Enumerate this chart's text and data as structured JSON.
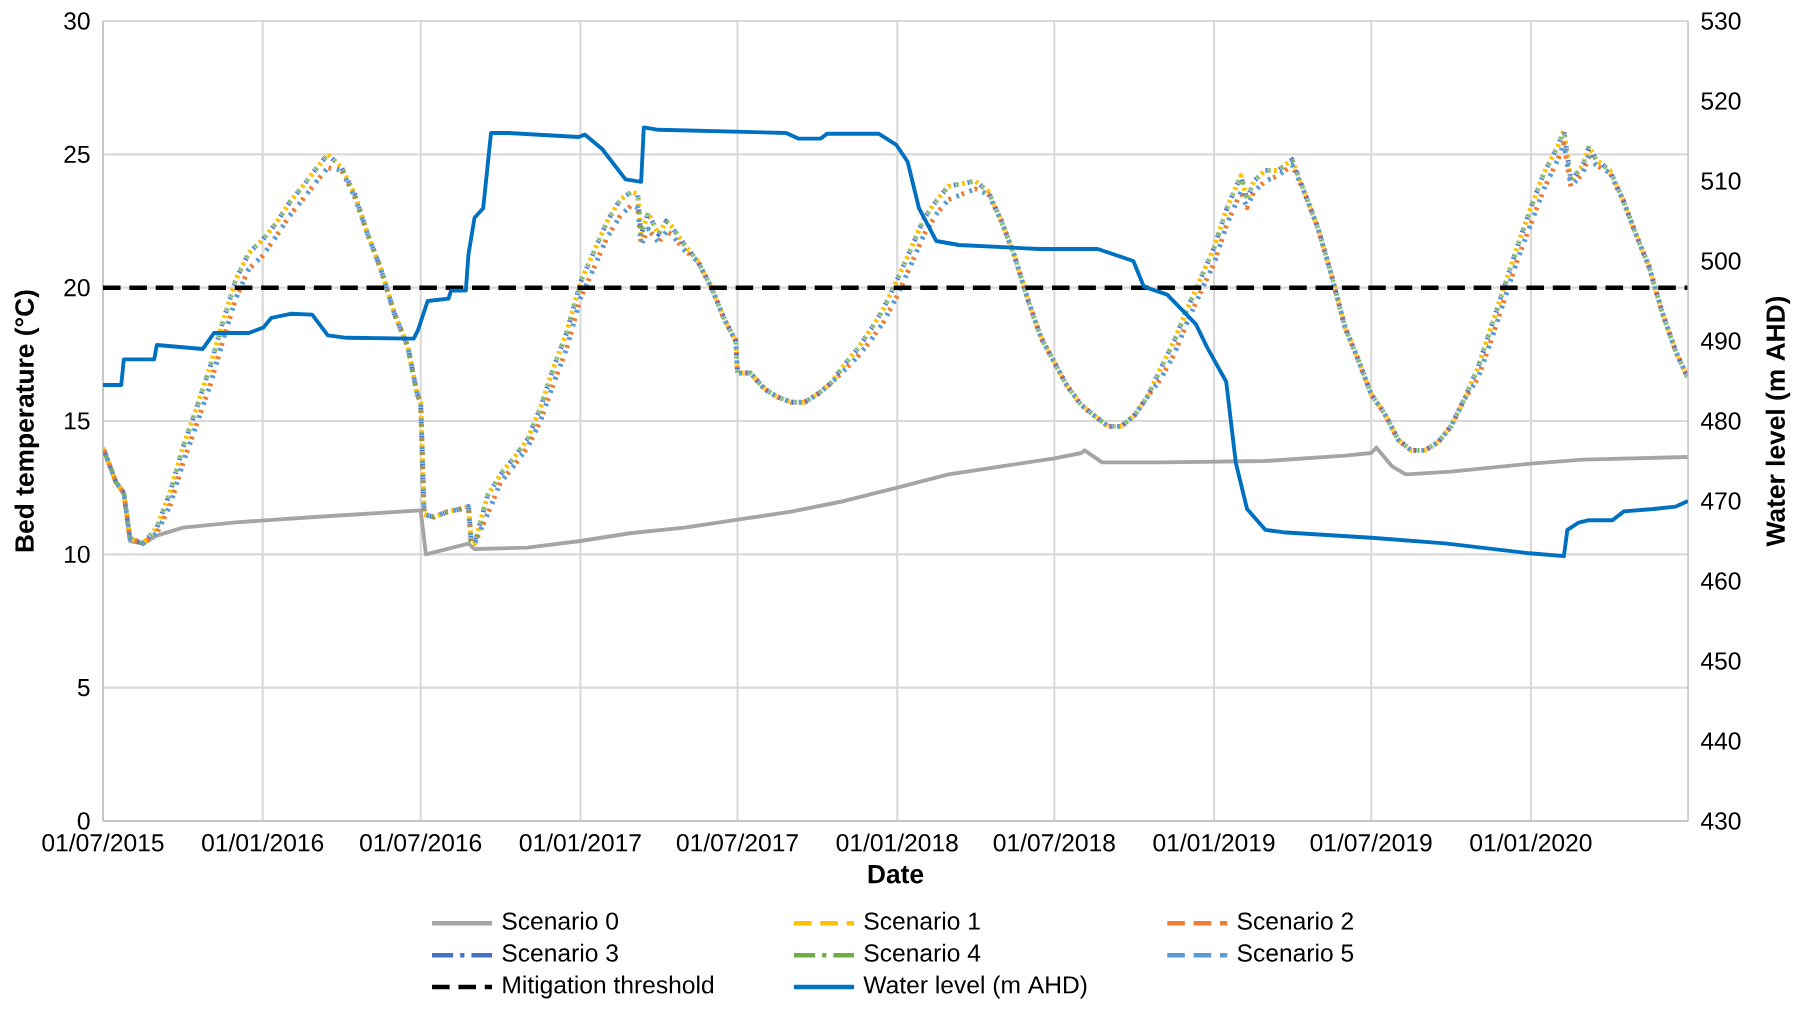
{
  "chart_data": {
    "type": "line",
    "xlabel": "Date",
    "ylabel": "Bed temperature (°C)",
    "y2label": "Water level (m AHD)",
    "xlim": [
      "2015-07-01",
      "2020-06-30"
    ],
    "xticks": [
      {
        "value": "2015-07-01",
        "label": "01/07/2015"
      },
      {
        "value": "2016-01-01",
        "label": "01/01/2016"
      },
      {
        "value": "2016-07-01",
        "label": "01/07/2016"
      },
      {
        "value": "2017-01-01",
        "label": "01/01/2017"
      },
      {
        "value": "2017-07-01",
        "label": "01/07/2017"
      },
      {
        "value": "2018-01-01",
        "label": "01/01/2018"
      },
      {
        "value": "2018-07-01",
        "label": "01/07/2018"
      },
      {
        "value": "2019-01-01",
        "label": "01/01/2019"
      },
      {
        "value": "2019-07-01",
        "label": "01/07/2019"
      },
      {
        "value": "2020-01-01",
        "label": "01/01/2020"
      }
    ],
    "ylim": [
      0,
      30
    ],
    "yticks": [
      0,
      5,
      10,
      15,
      20,
      25,
      30
    ],
    "y2lim": [
      430,
      530
    ],
    "y2ticks": [
      430,
      440,
      450,
      460,
      470,
      480,
      490,
      500,
      510,
      520,
      530
    ],
    "grid": true,
    "legend": "bottom",
    "x": [
      "2015-07-01",
      "2015-07-16",
      "2015-07-25",
      "2015-08-01",
      "2015-08-16",
      "2015-09-01",
      "2015-09-16",
      "2015-10-01",
      "2015-10-16",
      "2015-11-01",
      "2015-11-16",
      "2015-12-01",
      "2015-12-16",
      "2016-01-01",
      "2016-01-16",
      "2016-02-01",
      "2016-02-16",
      "2016-03-01",
      "2016-03-16",
      "2016-04-01",
      "2016-04-16",
      "2016-05-01",
      "2016-05-16",
      "2016-06-01",
      "2016-06-16",
      "2016-06-27",
      "2016-07-01",
      "2016-07-05",
      "2016-07-16",
      "2016-08-01",
      "2016-08-16",
      "2016-08-25",
      "2016-08-28",
      "2016-09-01",
      "2016-09-16",
      "2016-10-01",
      "2016-10-16",
      "2016-11-01",
      "2016-11-16",
      "2016-12-01",
      "2016-12-16",
      "2017-01-01",
      "2017-01-16",
      "2017-02-01",
      "2017-02-16",
      "2017-03-01",
      "2017-03-08",
      "2017-03-12",
      "2017-03-20",
      "2017-04-01",
      "2017-04-10",
      "2017-04-16",
      "2017-05-01",
      "2017-05-16",
      "2017-06-01",
      "2017-06-16",
      "2017-06-29",
      "2017-07-01",
      "2017-07-16",
      "2017-08-01",
      "2017-08-16",
      "2017-09-01",
      "2017-09-16",
      "2017-10-01",
      "2017-10-16",
      "2017-11-01",
      "2017-11-16",
      "2017-12-01",
      "2017-12-16",
      "2018-01-01",
      "2018-01-16",
      "2018-02-01",
      "2018-02-16",
      "2018-03-01",
      "2018-03-16",
      "2018-04-01",
      "2018-04-16",
      "2018-05-01",
      "2018-05-16",
      "2018-06-01",
      "2018-06-16",
      "2018-07-01",
      "2018-07-16",
      "2018-08-01",
      "2018-08-16",
      "2018-09-01",
      "2018-09-16",
      "2018-10-01",
      "2018-10-16",
      "2018-11-01",
      "2018-11-16",
      "2018-12-01",
      "2018-12-16",
      "2019-01-01",
      "2019-01-16",
      "2019-02-01",
      "2019-02-08",
      "2019-02-16",
      "2019-03-01",
      "2019-03-16",
      "2019-04-01",
      "2019-04-16",
      "2019-05-01",
      "2019-05-16",
      "2019-06-01",
      "2019-06-16",
      "2019-07-01",
      "2019-07-16",
      "2019-08-01",
      "2019-08-16",
      "2019-09-01",
      "2019-09-16",
      "2019-10-01",
      "2019-10-16",
      "2019-11-01",
      "2019-11-16",
      "2019-12-01",
      "2019-12-16",
      "2020-01-01",
      "2020-01-16",
      "2020-02-01",
      "2020-02-08",
      "2020-02-16",
      "2020-03-01",
      "2020-03-08",
      "2020-03-16",
      "2020-04-01",
      "2020-04-16",
      "2020-05-01",
      "2020-05-16",
      "2020-06-01",
      "2020-06-16",
      "2020-06-30"
    ],
    "series": [
      {
        "name": "Scenario 0",
        "color": "#a5a5a5",
        "line_style": "solid",
        "x": [
          "2015-07-01",
          "2015-07-16",
          "2015-07-25",
          "2015-08-01",
          "2015-08-16",
          "2015-09-01",
          "2015-10-01",
          "2015-12-01",
          "2016-03-01",
          "2016-07-01",
          "2016-07-07",
          "2016-08-25",
          "2016-09-01",
          "2016-11-01",
          "2017-01-01",
          "2017-03-01",
          "2017-05-01",
          "2017-07-01",
          "2017-09-01",
          "2017-11-01",
          "2018-01-01",
          "2018-03-01",
          "2018-05-01",
          "2018-07-01",
          "2018-08-01",
          "2018-08-05",
          "2018-08-25",
          "2018-11-01",
          "2019-03-01",
          "2019-06-01",
          "2019-07-01",
          "2019-07-07",
          "2019-07-25",
          "2019-08-10",
          "2019-10-01",
          "2020-01-01",
          "2020-03-01",
          "2020-06-30"
        ],
        "values": [
          14.0,
          12.7,
          12.3,
          10.5,
          10.4,
          10.7,
          11.0,
          11.2,
          11.4,
          11.65,
          10.0,
          10.4,
          10.2,
          10.25,
          10.5,
          10.8,
          11.0,
          11.3,
          11.6,
          12.0,
          12.5,
          13.0,
          13.3,
          13.6,
          13.8,
          13.9,
          13.45,
          13.45,
          13.5,
          13.7,
          13.8,
          14.0,
          13.3,
          13.0,
          13.1,
          13.4,
          13.55,
          13.65
        ]
      },
      {
        "name": "Scenario 1",
        "color": "#ffc000",
        "line_style": "dashed",
        "values": [
          14.0,
          12.7,
          12.3,
          10.6,
          10.4,
          11.0,
          12.3,
          14.0,
          15.4,
          17.0,
          18.7,
          20.3,
          21.3,
          21.8,
          22.4,
          23.2,
          23.8,
          24.4,
          25.0,
          24.5,
          23.5,
          22.0,
          20.7,
          19.0,
          17.8,
          16.0,
          15.7,
          11.5,
          11.4,
          11.6,
          11.7,
          11.8,
          10.5,
          10.4,
          12.2,
          13.0,
          13.6,
          14.3,
          15.5,
          17.0,
          18.3,
          20.2,
          21.3,
          22.5,
          23.3,
          23.6,
          23.5,
          22.0,
          22.8,
          22.0,
          22.5,
          22.3,
          21.6,
          21.0,
          20.0,
          18.8,
          18.0,
          16.8,
          16.8,
          16.2,
          15.9,
          15.7,
          15.7,
          16.0,
          16.4,
          17.1,
          17.7,
          18.4,
          19.2,
          20.3,
          21.4,
          22.6,
          23.3,
          23.8,
          23.9,
          24.0,
          23.6,
          22.5,
          21.2,
          19.5,
          18.1,
          17.2,
          16.3,
          15.6,
          15.2,
          14.8,
          14.8,
          15.2,
          15.9,
          17.0,
          18.0,
          19.2,
          20.3,
          21.5,
          23.0,
          24.2,
          23.3,
          24.0,
          24.4,
          24.4,
          24.8,
          23.5,
          22.2,
          20.5,
          18.5,
          17.3,
          16.0,
          15.3,
          14.3,
          13.9,
          13.9,
          14.2,
          14.8,
          15.8,
          17.0,
          18.5,
          20.0,
          21.5,
          23.0,
          24.3,
          25.3,
          25.9,
          24.0,
          24.6,
          25.3,
          24.8,
          24.4,
          23.3,
          22.0,
          20.8,
          19.0,
          17.6,
          16.6
        ]
      },
      {
        "name": "Scenario 2",
        "color": "#ed7d31",
        "line_style": "dashed",
        "values": [
          14.0,
          12.7,
          12.3,
          10.6,
          10.4,
          10.8,
          11.8,
          13.4,
          14.8,
          16.3,
          18.0,
          19.6,
          20.7,
          21.2,
          21.9,
          22.7,
          23.3,
          23.9,
          24.5,
          24.4,
          23.4,
          22.0,
          20.7,
          19.0,
          17.8,
          16.0,
          15.7,
          11.5,
          11.4,
          11.6,
          11.7,
          11.8,
          10.5,
          10.4,
          11.5,
          12.7,
          13.3,
          14.0,
          15.0,
          16.4,
          17.7,
          19.6,
          20.7,
          21.9,
          22.7,
          23.1,
          23.0,
          21.6,
          22.2,
          21.7,
          22.1,
          22.0,
          21.4,
          21.0,
          20.0,
          18.8,
          18.0,
          16.8,
          16.8,
          16.2,
          15.9,
          15.7,
          15.7,
          16.0,
          16.4,
          16.9,
          17.4,
          18.0,
          18.7,
          19.7,
          20.8,
          22.0,
          22.8,
          23.3,
          23.5,
          23.7,
          23.5,
          22.5,
          21.2,
          19.5,
          18.1,
          17.2,
          16.3,
          15.6,
          15.2,
          14.8,
          14.8,
          15.2,
          15.9,
          16.6,
          17.5,
          18.7,
          19.8,
          20.9,
          22.4,
          23.6,
          23.0,
          23.6,
          24.0,
          24.2,
          24.6,
          23.5,
          22.2,
          20.5,
          18.5,
          17.3,
          16.0,
          15.3,
          14.3,
          13.9,
          13.9,
          14.2,
          14.8,
          15.8,
          16.6,
          18.0,
          19.5,
          21.0,
          22.4,
          23.7,
          24.8,
          25.4,
          23.8,
          24.3,
          25.0,
          24.6,
          24.3,
          23.3,
          22.0,
          20.8,
          19.0,
          17.6,
          16.6
        ]
      },
      {
        "name": "Scenario 3",
        "color": "#4472c4",
        "line_style": "dashdot",
        "values": [
          14.0,
          12.7,
          12.3,
          10.6,
          10.4,
          11.0,
          12.3,
          14.0,
          15.4,
          17.0,
          18.7,
          20.3,
          21.3,
          21.8,
          22.4,
          23.2,
          23.8,
          24.4,
          25.0,
          24.5,
          23.5,
          22.0,
          20.7,
          19.0,
          17.8,
          16.0,
          15.7,
          11.5,
          11.4,
          11.6,
          11.7,
          11.8,
          10.5,
          10.4,
          12.2,
          13.0,
          13.6,
          14.3,
          15.5,
          17.0,
          18.3,
          20.2,
          21.3,
          22.5,
          23.3,
          23.6,
          23.5,
          22.0,
          22.8,
          22.0,
          22.5,
          22.3,
          21.6,
          21.0,
          20.0,
          18.8,
          18.0,
          16.8,
          16.8,
          16.2,
          15.9,
          15.7,
          15.7,
          16.0,
          16.4,
          17.1,
          17.7,
          18.4,
          19.2,
          20.3,
          21.4,
          22.6,
          23.3,
          23.8,
          23.9,
          24.0,
          23.6,
          22.5,
          21.2,
          19.5,
          18.1,
          17.2,
          16.3,
          15.6,
          15.2,
          14.8,
          14.8,
          15.2,
          15.9,
          17.0,
          18.0,
          19.2,
          20.3,
          21.5,
          23.0,
          24.2,
          23.3,
          24.0,
          24.4,
          24.4,
          24.8,
          23.5,
          22.2,
          20.5,
          18.5,
          17.3,
          16.0,
          15.3,
          14.3,
          13.9,
          13.9,
          14.2,
          14.8,
          15.8,
          17.0,
          18.5,
          20.0,
          21.5,
          23.0,
          24.3,
          25.3,
          25.9,
          24.0,
          24.6,
          25.3,
          24.8,
          24.4,
          23.3,
          22.0,
          20.8,
          19.0,
          17.6,
          16.6
        ]
      },
      {
        "name": "Scenario 4",
        "color": "#70ad47",
        "line_style": "dashdot",
        "values": [
          14.0,
          12.7,
          12.3,
          10.6,
          10.4,
          11.0,
          12.3,
          14.0,
          15.4,
          17.0,
          18.7,
          20.3,
          21.3,
          21.8,
          22.4,
          23.2,
          23.8,
          24.4,
          25.0,
          24.5,
          23.5,
          22.0,
          20.7,
          19.0,
          17.8,
          16.0,
          15.7,
          11.5,
          11.4,
          11.6,
          11.7,
          11.8,
          10.5,
          10.4,
          12.2,
          13.0,
          13.6,
          14.3,
          15.5,
          17.0,
          18.3,
          20.2,
          21.3,
          22.5,
          23.3,
          23.6,
          23.5,
          22.0,
          22.8,
          22.0,
          22.5,
          22.3,
          21.6,
          21.0,
          20.0,
          18.8,
          18.0,
          16.8,
          16.8,
          16.2,
          15.9,
          15.7,
          15.7,
          16.0,
          16.4,
          17.1,
          17.7,
          18.4,
          19.2,
          20.3,
          21.4,
          22.6,
          23.3,
          23.8,
          23.9,
          24.0,
          23.6,
          22.5,
          21.2,
          19.5,
          18.1,
          17.2,
          16.3,
          15.6,
          15.2,
          14.8,
          14.8,
          15.2,
          15.9,
          17.0,
          18.0,
          19.2,
          20.3,
          21.5,
          23.0,
          24.2,
          23.3,
          24.0,
          24.4,
          24.4,
          24.8,
          23.5,
          22.2,
          20.5,
          18.5,
          17.3,
          16.0,
          15.3,
          14.3,
          13.9,
          13.9,
          14.2,
          14.8,
          15.8,
          17.0,
          18.5,
          20.0,
          21.5,
          23.0,
          24.3,
          25.3,
          25.9,
          24.0,
          24.6,
          25.3,
          24.8,
          24.4,
          23.3,
          22.0,
          20.8,
          19.0,
          17.6,
          16.6
        ]
      },
      {
        "name": "Scenario 5",
        "color": "#5b9bd5",
        "line_style": "dashed",
        "values": [
          14.0,
          12.7,
          12.3,
          10.6,
          10.4,
          10.8,
          11.8,
          13.4,
          14.8,
          16.3,
          18.0,
          19.6,
          20.7,
          21.2,
          21.9,
          22.7,
          23.3,
          23.9,
          24.5,
          24.4,
          23.4,
          22.0,
          20.7,
          19.0,
          17.8,
          16.0,
          15.7,
          11.5,
          11.4,
          11.6,
          11.7,
          11.8,
          10.5,
          10.4,
          11.5,
          12.7,
          13.3,
          14.0,
          15.0,
          16.4,
          17.7,
          19.6,
          20.7,
          21.9,
          22.7,
          23.1,
          23.0,
          21.6,
          22.2,
          21.7,
          22.1,
          22.0,
          21.4,
          21.0,
          20.0,
          18.8,
          18.0,
          16.8,
          16.8,
          16.2,
          15.9,
          15.7,
          15.7,
          16.0,
          16.4,
          16.9,
          17.4,
          18.0,
          18.7,
          19.7,
          20.8,
          22.0,
          22.8,
          23.3,
          23.5,
          23.7,
          23.5,
          22.5,
          21.2,
          19.5,
          18.1,
          17.2,
          16.3,
          15.6,
          15.2,
          14.8,
          14.8,
          15.2,
          15.9,
          16.6,
          17.5,
          18.7,
          19.8,
          20.9,
          22.4,
          23.6,
          23.0,
          23.6,
          24.0,
          24.2,
          24.6,
          23.5,
          22.2,
          20.5,
          18.5,
          17.3,
          16.0,
          15.3,
          14.3,
          13.9,
          13.9,
          14.2,
          14.8,
          15.8,
          16.6,
          18.0,
          19.5,
          21.0,
          22.4,
          23.7,
          24.8,
          25.4,
          23.8,
          24.3,
          25.0,
          24.6,
          24.3,
          23.3,
          22.0,
          20.8,
          19.0,
          17.6,
          16.6
        ]
      },
      {
        "name": "Water level (m AHD)",
        "color": "#0070c0",
        "line_style": "solid",
        "axis": "y2",
        "x": [
          "2015-07-01",
          "2015-07-22",
          "2015-07-25",
          "2015-08-29",
          "2015-09-01",
          "2015-10-24",
          "2015-11-06",
          "2015-12-16",
          "2016-01-02",
          "2016-01-11",
          "2016-02-02",
          "2016-02-27",
          "2016-03-16",
          "2016-04-07",
          "2016-06-23",
          "2016-06-28",
          "2016-07-09",
          "2016-08-02",
          "2016-08-05",
          "2016-08-22",
          "2016-08-25",
          "2016-09-01",
          "2016-09-11",
          "2016-09-20",
          "2016-10-10",
          "2016-12-30",
          "2017-01-06",
          "2017-01-26",
          "2017-02-22",
          "2017-03-12",
          "2017-03-15",
          "2017-04-01",
          "2017-08-26",
          "2017-09-09",
          "2017-10-05",
          "2017-10-12",
          "2017-12-11",
          "2017-12-31",
          "2018-01-13",
          "2018-01-26",
          "2018-02-15",
          "2018-03-13",
          "2018-06-14",
          "2018-08-20",
          "2018-09-30",
          "2018-10-12",
          "2018-11-08",
          "2018-12-11",
          "2018-12-24",
          "2019-01-15",
          "2019-01-26",
          "2019-02-08",
          "2019-03-01",
          "2019-03-21",
          "2019-07-01",
          "2019-09-24",
          "2019-12-27",
          "2020-02-08",
          "2020-02-12",
          "2020-02-25",
          "2020-03-08",
          "2020-04-04",
          "2020-04-17",
          "2020-05-21",
          "2020-06-16",
          "2020-06-30"
        ],
        "values": [
          484.5,
          484.5,
          487.7,
          487.7,
          489.5,
          489.0,
          491.0,
          491.0,
          491.7,
          492.9,
          493.4,
          493.3,
          490.7,
          490.4,
          490.3,
          491.4,
          495.0,
          495.3,
          496.3,
          496.3,
          500.8,
          505.4,
          506.6,
          516.0,
          516.0,
          515.5,
          515.8,
          514.0,
          510.2,
          509.9,
          516.7,
          516.4,
          516.0,
          515.3,
          515.3,
          515.9,
          515.9,
          514.5,
          512.4,
          506.6,
          502.5,
          502.0,
          501.5,
          501.5,
          500.0,
          496.8,
          495.8,
          492.1,
          489.2,
          484.9,
          474.8,
          469.0,
          466.4,
          466.1,
          465.4,
          464.7,
          463.5,
          463.1,
          466.4,
          467.3,
          467.6,
          467.6,
          468.7,
          469.0,
          469.3,
          470.0
        ]
      }
    ],
    "ref_lines": [
      {
        "axis": "y",
        "value": 20,
        "label": "Mitigation threshold",
        "color": "#000000",
        "line_style": "dashed"
      }
    ]
  }
}
